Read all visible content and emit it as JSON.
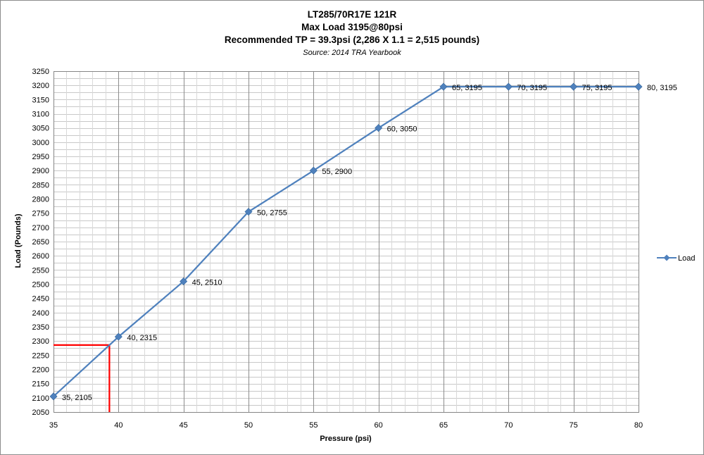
{
  "chart_data": {
    "type": "line",
    "title_lines": [
      "LT285/70R17E 121R",
      "Max Load 3195@80psi",
      "Recommended TP = 39.3psi (2,286 X 1.1 = 2,515 pounds)"
    ],
    "subtitle": "Source: 2014 TRA Yearbook",
    "xlabel": "Pressure (psi)",
    "ylabel": "Load (Pounds)",
    "xlim": [
      35,
      80
    ],
    "ylim": [
      2050,
      3250
    ],
    "x_ticks": [
      35,
      40,
      45,
      50,
      55,
      60,
      65,
      70,
      75,
      80
    ],
    "y_ticks": [
      2050,
      2100,
      2150,
      2200,
      2250,
      2300,
      2350,
      2400,
      2450,
      2500,
      2550,
      2600,
      2650,
      2700,
      2750,
      2800,
      2850,
      2900,
      2950,
      3000,
      3050,
      3100,
      3150,
      3200,
      3250
    ],
    "x_minor_step": 1,
    "y_grid_step": 25,
    "grid": true,
    "legend_position": "right",
    "series": [
      {
        "name": "Load",
        "color": "#4f81bd",
        "x": [
          35,
          40,
          45,
          50,
          55,
          60,
          65,
          70,
          75,
          80
        ],
        "y": [
          2105,
          2315,
          2510,
          2755,
          2900,
          3050,
          3195,
          3195,
          3195,
          3195
        ],
        "data_labels": [
          "35, 2105",
          "40, 2315",
          "45, 2510",
          "50, 2755",
          "55, 2900",
          "60, 3050",
          "65, 3195",
          "70, 3195",
          "75, 3195",
          "80, 3195"
        ]
      }
    ],
    "annotation": {
      "type": "reference-lines",
      "x": 39.3,
      "y": 2286,
      "color": "#ff0000"
    }
  }
}
